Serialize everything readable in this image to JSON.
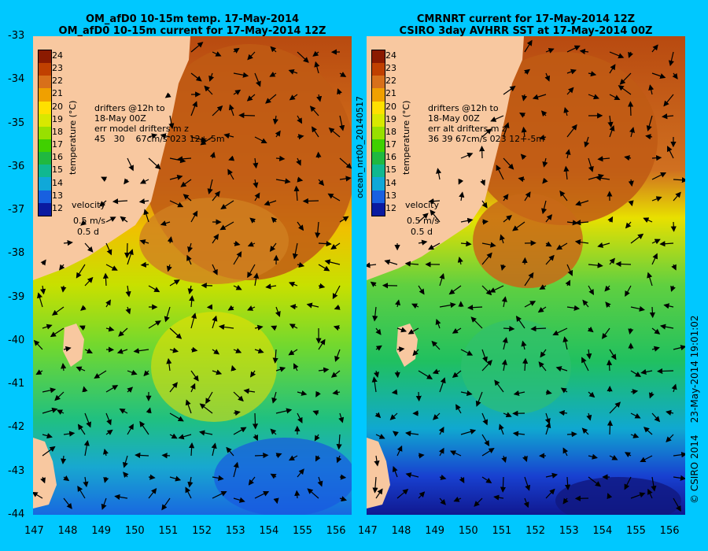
{
  "left_panel": {
    "title_line1": "OM_afD0 10-15m temp. 17-May-2014",
    "title_line2": "OM_afD0 10-15m current for 17-May-2014 12Z",
    "drifters": "drifters @12h to\n18-May 00Z\nerr model drifters m z\n45   30    67cm/s 023 12+-5m",
    "velocity_label": "velocity",
    "velocity_scale": "0.5 m/s",
    "velocity_time": "0.5 d"
  },
  "right_panel": {
    "title_line1": "CMRNRT current for 17-May-2014 12Z",
    "title_line2": "CSIRO 3day AVHRR SST at 17-May-2014 00Z",
    "drifters": "drifters @12h to\n18-May 00Z\nerr alt drifters m z\n36 39 67cm/s 023 12+-5m",
    "velocity_label": "velocity",
    "velocity_scale": "0.5 m/s",
    "velocity_time": "0.5 d",
    "product_id": "ocean_nrt00_20140517"
  },
  "colorbar": {
    "label": "temperature (°C)",
    "ticks": [
      "24",
      "23",
      "22",
      "21",
      "20",
      "19",
      "18",
      "17",
      "16",
      "15",
      "14",
      "13",
      "12"
    ],
    "colors": [
      "#8b1a00",
      "#c04000",
      "#d8701a",
      "#f0a000",
      "#ffe000",
      "#d8e800",
      "#98e000",
      "#40d000",
      "#20b840",
      "#10b890",
      "#10a8d8",
      "#1860e0",
      "#0a1aa0"
    ]
  },
  "y_ticks": [
    "-33",
    "-34",
    "-35",
    "-36",
    "-37",
    "-38",
    "-39",
    "-40",
    "-41",
    "-42",
    "-43",
    "-44"
  ],
  "x_ticks": [
    "147",
    "148",
    "149",
    "150",
    "151",
    "152",
    "153",
    "154",
    "155",
    "156"
  ],
  "credits": {
    "copyright": "© CSIRO 2014",
    "timestamp": "23-May-2014 19:01:02"
  },
  "map": {
    "lon_range": [
      147,
      156.5
    ],
    "lat_range": [
      -44,
      -33
    ],
    "land_color": "#f8c8a0",
    "background_color": "#00c8ff"
  }
}
